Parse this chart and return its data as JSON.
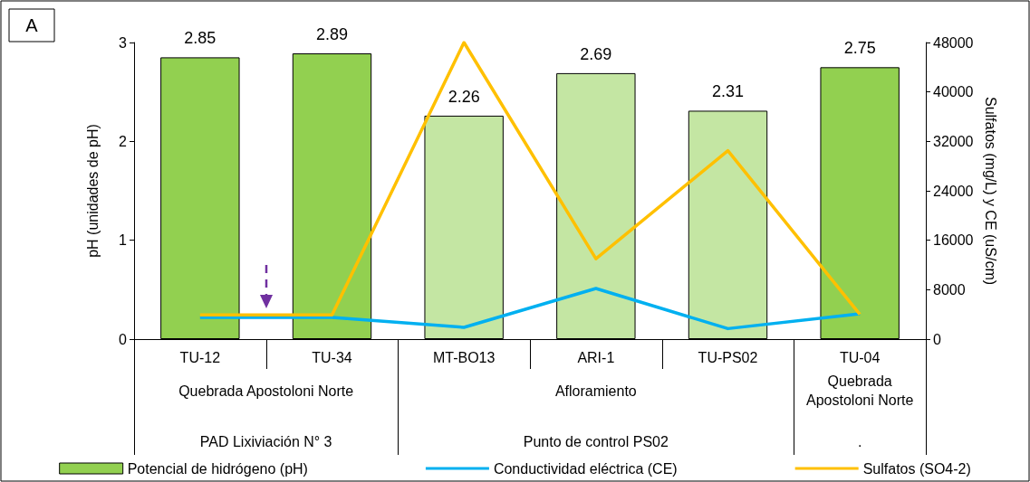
{
  "chart_data": {
    "type": "bar",
    "categories": [
      "TU-12",
      "TU-34",
      "MT-BO13",
      "ARI-1",
      "TU-PS02",
      "TU-04"
    ],
    "ylabel": "pH (unidades de pH)",
    "y2label": "Sulfatos (mg/L) y CE (uS/cm)",
    "ylim": [
      0,
      3
    ],
    "yticks": [
      0,
      1,
      2,
      3
    ],
    "y2lim": [
      0,
      48000
    ],
    "y2ticks": [
      0,
      8000,
      16000,
      24000,
      32000,
      40000,
      48000
    ],
    "series": [
      {
        "name": "Potencial de hidrógeno (pH)",
        "colors": [
          "#92d050",
          "#92d050",
          "#c4e6a3",
          "#c4e6a3",
          "#c4e6a3",
          "#92d050"
        ],
        "values": [
          2.85,
          2.89,
          2.26,
          2.69,
          2.31,
          2.75
        ],
        "value_labels": [
          "2.85",
          "2.89",
          "2.26",
          "2.69",
          "2.31",
          "2.75"
        ]
      },
      {
        "name": "Conductividad eléctrica (CE)",
        "type": "line",
        "axis": "y2",
        "color": "#00b0f0",
        "values": [
          3500,
          3500,
          1900,
          8200,
          1700,
          4100
        ]
      },
      {
        "name": "Sulfatos (SO4-2)",
        "type": "line",
        "axis": "y2",
        "color": "#ffc000",
        "values": [
          3900,
          3900,
          48000,
          13000,
          30500,
          4000
        ]
      }
    ],
    "annotations": [
      "A",
      "Quebrada Apostoloni Norte",
      "Afloramiento",
      "Quebrada\nApostoloni Norte",
      "PAD Lixiviación N° 3",
      "Punto de control PS02",
      "."
    ],
    "legend": "bottom",
    "grid": false
  }
}
